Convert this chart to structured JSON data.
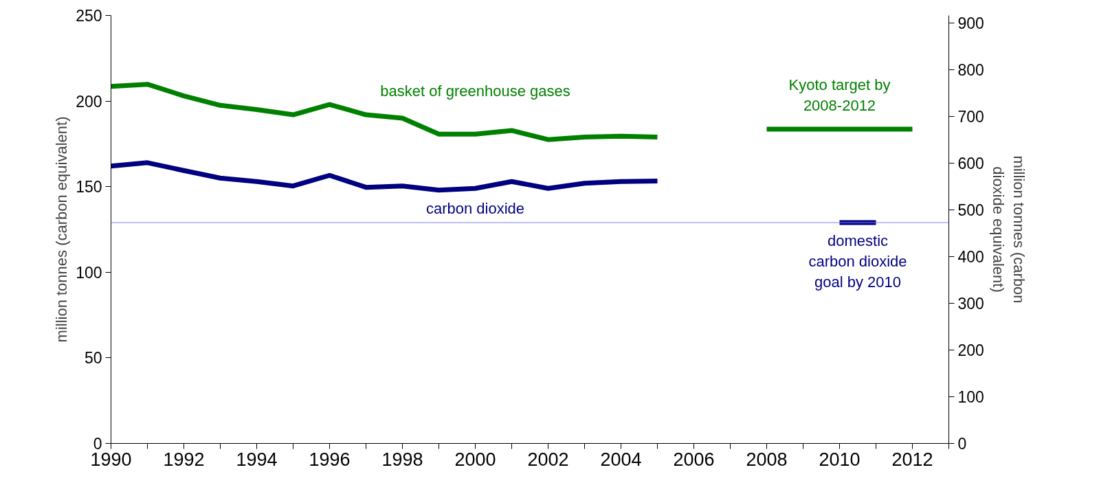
{
  "chart_data": {
    "type": "line",
    "ylabel": "million tonnes (carbon equivalent)",
    "y2label": "million tonnes (carbon dioxide equivalent)",
    "xlim": [
      1990,
      2013
    ],
    "xticks": [
      1990,
      {
        "value": 1991,
        "label": null
      },
      1992,
      {
        "value": 1993,
        "label": null
      },
      1994,
      {
        "value": 1995,
        "label": null
      },
      1996,
      {
        "value": 1997,
        "label": null
      },
      1998,
      {
        "value": 1999,
        "label": null
      },
      2000,
      {
        "value": 2001,
        "label": null
      },
      2002,
      {
        "value": 2003,
        "label": null
      },
      2004,
      {
        "value": 2005,
        "label": null
      },
      2006,
      {
        "value": 2007,
        "label": null
      },
      2008,
      {
        "value": 2009,
        "label": null
      },
      2010,
      {
        "value": 2011,
        "label": null
      },
      2012,
      {
        "value": 2013,
        "label": null
      }
    ],
    "ylim": [
      0,
      250
    ],
    "yticks": [
      0,
      50,
      100,
      150,
      200,
      250
    ],
    "y2lim": [
      0,
      916.7
    ],
    "y2ticks": [
      0,
      100,
      200,
      300,
      400,
      500,
      600,
      700,
      800,
      900
    ],
    "grid": false,
    "series": [
      {
        "name": "basket of greenhouse gases",
        "color": "#008000",
        "x": [
          1990,
          1991,
          1992,
          1993,
          1994,
          1995,
          1996,
          1997,
          1998,
          1999,
          2000,
          2001,
          2002,
          2003,
          2004,
          2005
        ],
        "values": [
          208.6,
          209.8,
          203,
          197.5,
          195,
          192,
          198,
          192,
          190,
          180.7,
          180.7,
          182.8,
          177.5,
          179,
          179.5,
          179
        ]
      },
      {
        "name": "Kyoto target by\n2008-2012",
        "color": "#008000",
        "x": [
          2008,
          2009,
          2010,
          2011,
          2012
        ],
        "values": [
          183.6,
          183.6,
          183.6,
          183.6,
          183.6
        ]
      },
      {
        "name": "carbon dioxide",
        "color": "#000080",
        "x": [
          1990,
          1991,
          1992,
          1993,
          1994,
          1995,
          1996,
          1997,
          1998,
          1999,
          2000,
          2001,
          2002,
          2003,
          2004,
          2005
        ],
        "values": [
          162,
          164,
          159.4,
          155,
          153,
          150.4,
          156.6,
          149.6,
          150.4,
          148,
          149,
          153,
          149,
          152,
          153,
          153.3
        ]
      },
      {
        "name": "domestic\ncarbon dioxide\ngoal by 2010",
        "color": "#000080",
        "x": [
          2010,
          2011
        ],
        "values": [
          129,
          129
        ]
      }
    ],
    "ref_lines": [
      {
        "axis": "y",
        "value": 129,
        "color": "#8080ff"
      }
    ]
  }
}
